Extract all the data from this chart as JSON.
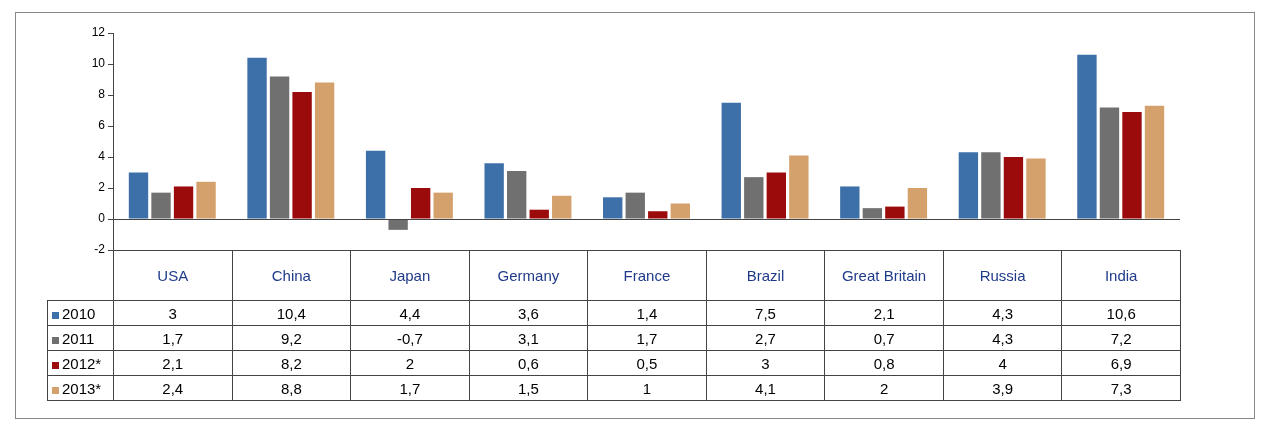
{
  "chart_data": {
    "type": "bar",
    "categories": [
      "USA",
      "China",
      "Japan",
      "Germany",
      "France",
      "Brazil",
      "Great Britain",
      "Russia",
      "India"
    ],
    "series": [
      {
        "name": "2010",
        "color": "#3d6fa8",
        "values": [
          3,
          10.4,
          4.4,
          3.6,
          1.4,
          7.5,
          2.1,
          4.3,
          10.6
        ],
        "value_labels": [
          "3",
          "10,4",
          "4,4",
          "3,6",
          "1,4",
          "7,5",
          "2,1",
          "4,3",
          "10,6"
        ]
      },
      {
        "name": "2011",
        "color": "#707070",
        "values": [
          1.7,
          9.2,
          -0.7,
          3.1,
          1.7,
          2.7,
          0.7,
          4.3,
          7.2
        ],
        "value_labels": [
          "1,7",
          "9,2",
          "-0,7",
          "3,1",
          "1,7",
          "2,7",
          "0,7",
          "4,3",
          "7,2"
        ]
      },
      {
        "name": "2012*",
        "color": "#9b0b0b",
        "values": [
          2.1,
          8.2,
          2,
          0.6,
          0.5,
          3,
          0.8,
          4,
          6.9
        ],
        "value_labels": [
          "2,1",
          "8,2",
          "2",
          "0,6",
          "0,5",
          "3",
          "0,8",
          "4",
          "6,9"
        ]
      },
      {
        "name": "2013*",
        "color": "#d4a06c",
        "values": [
          2.4,
          8.8,
          1.7,
          1.5,
          1,
          4.1,
          2,
          3.9,
          7.3
        ],
        "value_labels": [
          "2,4",
          "8,8",
          "1,7",
          "1,5",
          "1",
          "4,1",
          "2",
          "3,9",
          "7,3"
        ]
      }
    ],
    "ref_lines": [
      {
        "axis": "y",
        "value": 0,
        "color": "#444444"
      }
    ],
    "ylim": [
      -2,
      12
    ],
    "yticks": [
      -2,
      0,
      2,
      4,
      6,
      8,
      10,
      12
    ],
    "grid": false,
    "legend": "bottom"
  }
}
